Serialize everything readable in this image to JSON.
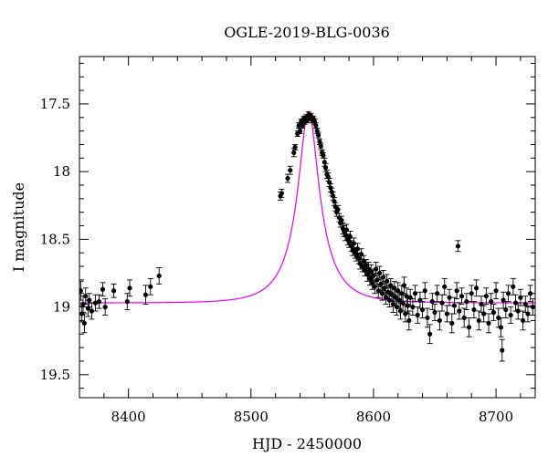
{
  "chart_data": {
    "type": "scatter",
    "title": "OGLE-2019-BLG-0036",
    "xlabel": "HJD - 2450000",
    "ylabel": "I magnitude",
    "xlim": [
      8360,
      8732
    ],
    "ylim": [
      19.67,
      17.15
    ],
    "y_inverted": true,
    "x_ticks": [
      8400,
      8500,
      8600,
      8700
    ],
    "x_tick_labels": [
      "8400",
      "8500",
      "8600",
      "8700"
    ],
    "y_ticks": [
      17.5,
      18,
      18.5,
      19,
      19.5
    ],
    "y_tick_labels": [
      "17.5",
      "18",
      "18.5",
      "19",
      "19.5"
    ],
    "grid": false,
    "colors": {
      "data": "#000000",
      "model": "#ee00ee"
    },
    "series": [
      {
        "kind": "points_with_errorbars",
        "points": [
          [
            8361,
            18.88,
            0.07
          ],
          [
            8362,
            19.05,
            0.06
          ],
          [
            8363,
            18.98,
            0.06
          ],
          [
            8364,
            19.12,
            0.07
          ],
          [
            8365,
            18.92,
            0.06
          ],
          [
            8367,
            19.01,
            0.06
          ],
          [
            8368,
            18.95,
            0.05
          ],
          [
            8370,
            19.03,
            0.06
          ],
          [
            8373,
            18.97,
            0.06
          ],
          [
            8376,
            18.96,
            0.05
          ],
          [
            8379,
            18.87,
            0.05
          ],
          [
            8381,
            19.0,
            0.06
          ],
          [
            8388,
            18.88,
            0.05
          ],
          [
            8399,
            18.96,
            0.06
          ],
          [
            8401,
            18.86,
            0.06
          ],
          [
            8414,
            18.91,
            0.07
          ],
          [
            8418,
            18.85,
            0.06
          ],
          [
            8425,
            18.77,
            0.06
          ],
          [
            8524,
            18.18,
            0.03
          ],
          [
            8525,
            18.16,
            0.03
          ],
          [
            8530,
            18.05,
            0.03
          ],
          [
            8532,
            17.99,
            0.03
          ],
          [
            8535,
            17.86,
            0.03
          ],
          [
            8536,
            17.82,
            0.02
          ],
          [
            8538,
            17.72,
            0.02
          ],
          [
            8539,
            17.66,
            0.02
          ],
          [
            8540,
            17.7,
            0.02
          ],
          [
            8541,
            17.63,
            0.02
          ],
          [
            8542,
            17.66,
            0.02
          ],
          [
            8543,
            17.61,
            0.02
          ],
          [
            8544,
            17.63,
            0.02
          ],
          [
            8545,
            17.6,
            0.02
          ],
          [
            8546,
            17.62,
            0.02
          ],
          [
            8547,
            17.58,
            0.02
          ],
          [
            8548,
            17.6,
            0.02
          ],
          [
            8549,
            17.59,
            0.02
          ],
          [
            8550,
            17.62,
            0.02
          ],
          [
            8551,
            17.61,
            0.02
          ],
          [
            8552,
            17.63,
            0.02
          ],
          [
            8553,
            17.66,
            0.02
          ],
          [
            8554,
            17.7,
            0.02
          ],
          [
            8555,
            17.73,
            0.02
          ],
          [
            8556,
            17.78,
            0.02
          ],
          [
            8557,
            17.81,
            0.02
          ],
          [
            8558,
            17.86,
            0.02
          ],
          [
            8559,
            17.88,
            0.02
          ],
          [
            8560,
            17.93,
            0.03
          ],
          [
            8561,
            17.97,
            0.03
          ],
          [
            8562,
            18.02,
            0.03
          ],
          [
            8563,
            18.04,
            0.03
          ],
          [
            8564,
            18.08,
            0.03
          ],
          [
            8565,
            18.12,
            0.03
          ],
          [
            8566,
            18.15,
            0.03
          ],
          [
            8567,
            18.18,
            0.03
          ],
          [
            8568,
            18.22,
            0.03
          ],
          [
            8569,
            18.26,
            0.03
          ],
          [
            8570,
            18.3,
            0.03
          ],
          [
            8571,
            18.28,
            0.03
          ],
          [
            8572,
            18.34,
            0.03
          ],
          [
            8573,
            18.38,
            0.03
          ],
          [
            8574,
            18.36,
            0.03
          ],
          [
            8575,
            18.42,
            0.04
          ],
          [
            8576,
            18.44,
            0.04
          ],
          [
            8577,
            18.47,
            0.04
          ],
          [
            8578,
            18.43,
            0.04
          ],
          [
            8579,
            18.5,
            0.04
          ],
          [
            8580,
            18.52,
            0.04
          ],
          [
            8581,
            18.48,
            0.04
          ],
          [
            8582,
            18.55,
            0.04
          ],
          [
            8583,
            18.58,
            0.04
          ],
          [
            8584,
            18.53,
            0.04
          ],
          [
            8585,
            18.6,
            0.04
          ],
          [
            8586,
            18.62,
            0.04
          ],
          [
            8587,
            18.57,
            0.04
          ],
          [
            8588,
            18.64,
            0.04
          ],
          [
            8589,
            18.68,
            0.04
          ],
          [
            8590,
            18.61,
            0.04
          ],
          [
            8591,
            18.7,
            0.04
          ],
          [
            8592,
            18.66,
            0.04
          ],
          [
            8593,
            18.73,
            0.04
          ],
          [
            8594,
            18.69,
            0.04
          ],
          [
            8595,
            18.76,
            0.05
          ],
          [
            8596,
            18.72,
            0.05
          ],
          [
            8597,
            18.79,
            0.05
          ],
          [
            8598,
            18.74,
            0.05
          ],
          [
            8599,
            18.82,
            0.05
          ],
          [
            8600,
            18.77,
            0.05
          ],
          [
            8601,
            18.85,
            0.05
          ],
          [
            8602,
            18.72,
            0.05
          ],
          [
            8603,
            18.8,
            0.05
          ],
          [
            8604,
            18.88,
            0.05
          ],
          [
            8605,
            18.75,
            0.05
          ],
          [
            8606,
            18.83,
            0.05
          ],
          [
            8607,
            18.9,
            0.05
          ],
          [
            8608,
            18.78,
            0.05
          ],
          [
            8609,
            18.86,
            0.05
          ],
          [
            8610,
            18.93,
            0.05
          ],
          [
            8611,
            18.81,
            0.05
          ],
          [
            8612,
            18.89,
            0.05
          ],
          [
            8613,
            18.95,
            0.05
          ],
          [
            8614,
            18.84,
            0.05
          ],
          [
            8615,
            18.91,
            0.05
          ],
          [
            8616,
            18.98,
            0.06
          ],
          [
            8617,
            18.86,
            0.05
          ],
          [
            8618,
            18.93,
            0.06
          ],
          [
            8619,
            19.0,
            0.06
          ],
          [
            8620,
            18.88,
            0.06
          ],
          [
            8621,
            18.95,
            0.06
          ],
          [
            8622,
            19.03,
            0.06
          ],
          [
            8623,
            18.9,
            0.06
          ],
          [
            8624,
            18.97,
            0.06
          ],
          [
            8625,
            18.84,
            0.06
          ],
          [
            8626,
            19.05,
            0.06
          ],
          [
            8627,
            18.92,
            0.06
          ],
          [
            8628,
            18.99,
            0.06
          ],
          [
            8629,
            19.1,
            0.07
          ],
          [
            8630,
            18.93,
            0.06
          ],
          [
            8632,
            19.0,
            0.06
          ],
          [
            8634,
            18.9,
            0.06
          ],
          [
            8636,
            19.06,
            0.06
          ],
          [
            8638,
            18.95,
            0.06
          ],
          [
            8640,
            19.02,
            0.06
          ],
          [
            8642,
            18.88,
            0.06
          ],
          [
            8644,
            19.08,
            0.07
          ],
          [
            8646,
            19.2,
            0.07
          ],
          [
            8648,
            18.96,
            0.06
          ],
          [
            8650,
            19.04,
            0.06
          ],
          [
            8652,
            18.9,
            0.06
          ],
          [
            8654,
            19.1,
            0.07
          ],
          [
            8656,
            18.97,
            0.06
          ],
          [
            8658,
            18.85,
            0.06
          ],
          [
            8660,
            19.05,
            0.06
          ],
          [
            8662,
            18.93,
            0.06
          ],
          [
            8664,
            19.12,
            0.07
          ],
          [
            8666,
            18.99,
            0.06
          ],
          [
            8668,
            18.88,
            0.06
          ],
          [
            8669,
            18.55,
            0.04
          ],
          [
            8670,
            19.03,
            0.06
          ],
          [
            8672,
            18.92,
            0.06
          ],
          [
            8674,
            19.08,
            0.07
          ],
          [
            8676,
            18.96,
            0.06
          ],
          [
            8678,
            19.15,
            0.07
          ],
          [
            8680,
            18.9,
            0.06
          ],
          [
            8682,
            19.02,
            0.06
          ],
          [
            8684,
            18.86,
            0.06
          ],
          [
            8686,
            19.1,
            0.07
          ],
          [
            8688,
            18.98,
            0.06
          ],
          [
            8690,
            19.05,
            0.06
          ],
          [
            8692,
            18.92,
            0.06
          ],
          [
            8694,
            19.12,
            0.07
          ],
          [
            8696,
            18.96,
            0.06
          ],
          [
            8698,
            19.04,
            0.06
          ],
          [
            8700,
            18.88,
            0.06
          ],
          [
            8702,
            19.08,
            0.07
          ],
          [
            8704,
            19.15,
            0.07
          ],
          [
            8705,
            19.32,
            0.08
          ],
          [
            8706,
            18.95,
            0.06
          ],
          [
            8708,
            19.02,
            0.06
          ],
          [
            8710,
            18.9,
            0.06
          ],
          [
            8712,
            19.06,
            0.06
          ],
          [
            8714,
            18.85,
            0.06
          ],
          [
            8716,
            18.97,
            0.06
          ],
          [
            8718,
            19.03,
            0.06
          ],
          [
            8720,
            18.93,
            0.06
          ],
          [
            8722,
            19.1,
            0.07
          ],
          [
            8724,
            18.98,
            0.06
          ],
          [
            8726,
            19.05,
            0.06
          ],
          [
            8728,
            18.9,
            0.06
          ],
          [
            8730,
            19.0,
            0.06
          ]
        ]
      },
      {
        "kind": "model_curve",
        "t0": 8547,
        "tE": 28,
        "u0": 0.3,
        "baseline": 18.97,
        "amplitude": 1.415
      }
    ]
  }
}
